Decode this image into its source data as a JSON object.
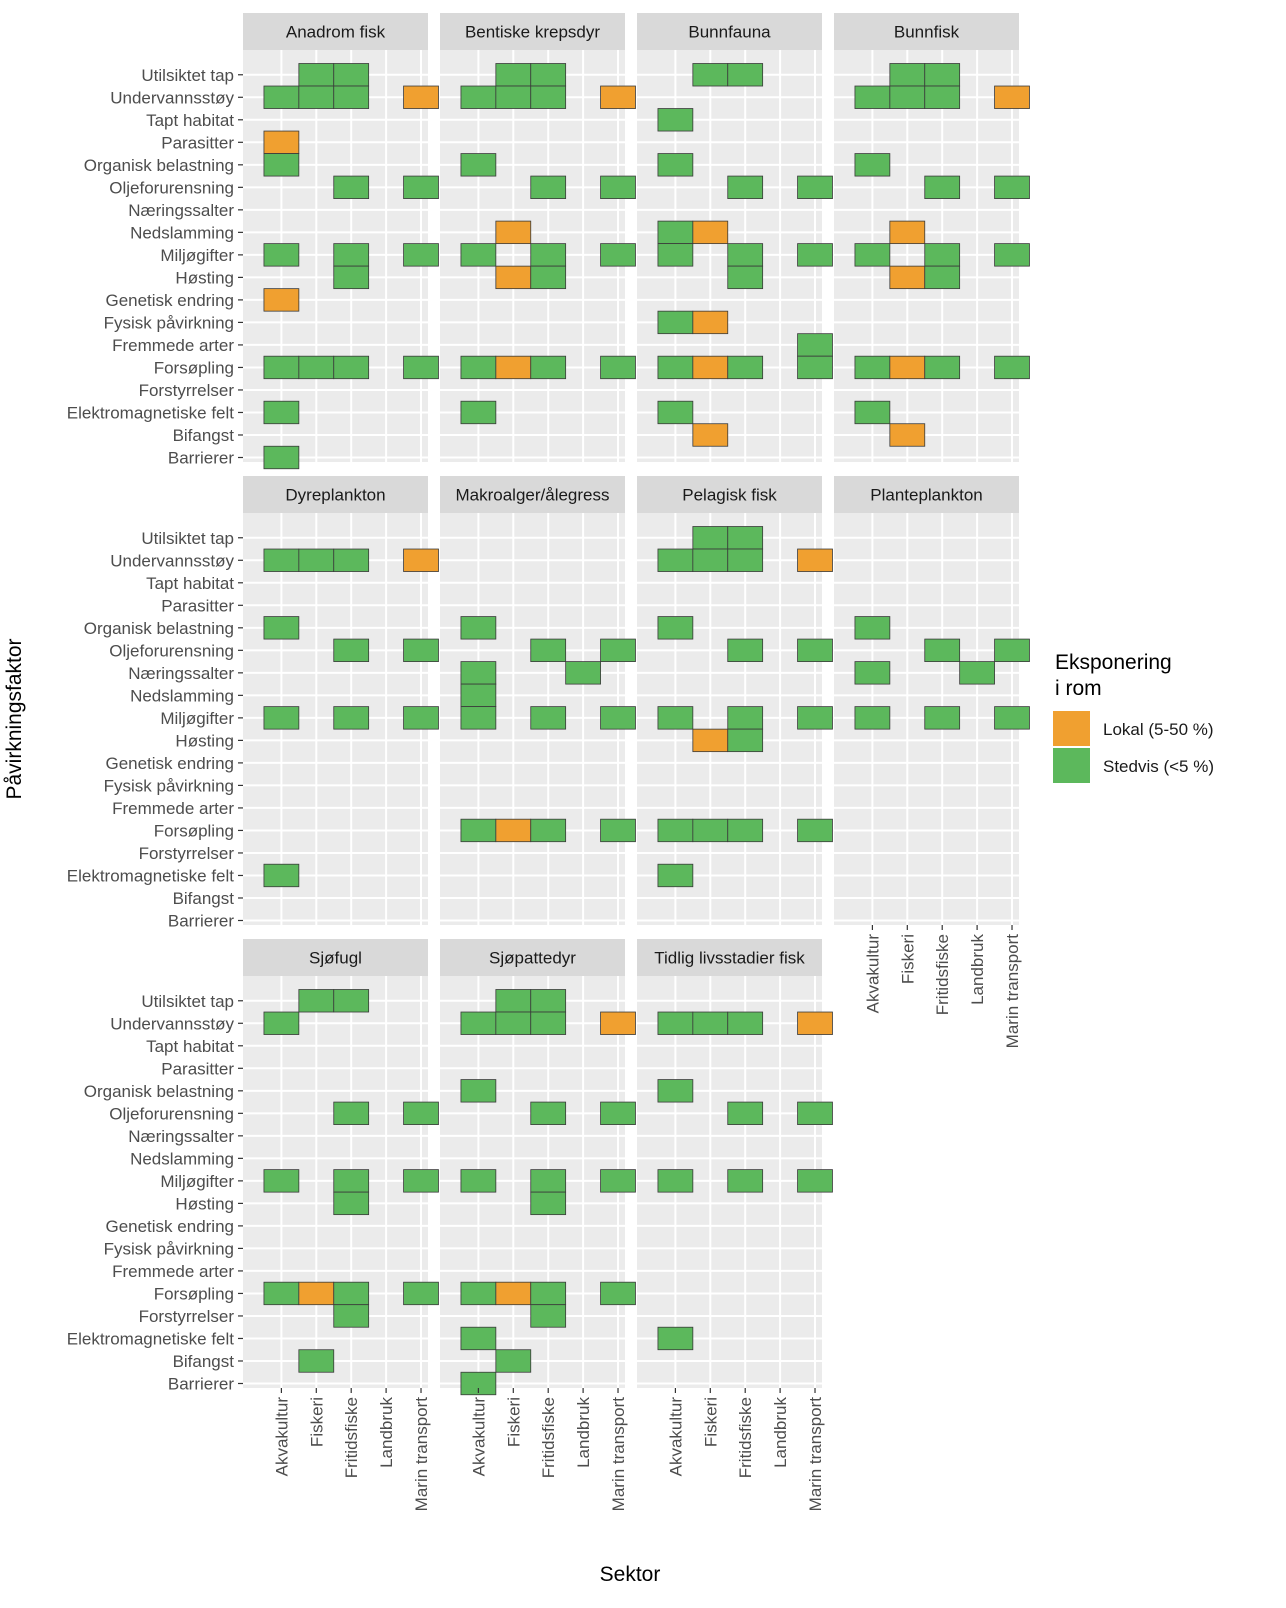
{
  "chart_data": {
    "type": "heatmap",
    "xlabel": "Sektor",
    "ylabel": "Påvirkningsfaktor",
    "x_categories": [
      "Akvakultur",
      "Fiskeri",
      "Fritidsfiske",
      "Landbruk",
      "Marin transport"
    ],
    "y_categories": [
      "Utilsiktet tap",
      "Undervannsstøy",
      "Tapt habitat",
      "Parasitter",
      "Organisk belastning",
      "Oljeforurensning",
      "Næringssalter",
      "Nedslamming",
      "Miljøgifter",
      "Høsting",
      "Genetisk endring",
      "Fysisk påvirkning",
      "Fremmede arter",
      "Forsøpling",
      "Forstyrrelser",
      "Elektromagnetiske felt",
      "Bifangst",
      "Barrierer"
    ],
    "legend": {
      "title_lines": [
        "Eksponering",
        "i rom"
      ],
      "position": "right",
      "entries": [
        {
          "key": "L",
          "label": "Lokal (5-50 %)",
          "color": "#F0A030"
        },
        {
          "key": "S",
          "label": "Stedvis (<5 %)",
          "color": "#5CB85C"
        }
      ]
    },
    "panels": [
      {
        "title": "Anadrom fisk",
        "cells": [
          [
            "Utilsiktet tap",
            "Fiskeri",
            "S"
          ],
          [
            "Utilsiktet tap",
            "Fritidsfiske",
            "S"
          ],
          [
            "Undervannsstøy",
            "Akvakultur",
            "S"
          ],
          [
            "Undervannsstøy",
            "Fiskeri",
            "S"
          ],
          [
            "Undervannsstøy",
            "Fritidsfiske",
            "S"
          ],
          [
            "Undervannsstøy",
            "Marin transport",
            "L"
          ],
          [
            "Parasitter",
            "Akvakultur",
            "L"
          ],
          [
            "Organisk belastning",
            "Akvakultur",
            "S"
          ],
          [
            "Oljeforurensning",
            "Fritidsfiske",
            "S"
          ],
          [
            "Oljeforurensning",
            "Marin transport",
            "S"
          ],
          [
            "Miljøgifter",
            "Akvakultur",
            "S"
          ],
          [
            "Miljøgifter",
            "Fritidsfiske",
            "S"
          ],
          [
            "Miljøgifter",
            "Marin transport",
            "S"
          ],
          [
            "Høsting",
            "Fritidsfiske",
            "S"
          ],
          [
            "Genetisk endring",
            "Akvakultur",
            "L"
          ],
          [
            "Forsøpling",
            "Akvakultur",
            "S"
          ],
          [
            "Forsøpling",
            "Fiskeri",
            "S"
          ],
          [
            "Forsøpling",
            "Fritidsfiske",
            "S"
          ],
          [
            "Forsøpling",
            "Marin transport",
            "S"
          ],
          [
            "Elektromagnetiske felt",
            "Akvakultur",
            "S"
          ],
          [
            "Barrierer",
            "Akvakultur",
            "S"
          ]
        ]
      },
      {
        "title": "Bentiske krepsdyr",
        "cells": [
          [
            "Utilsiktet tap",
            "Fiskeri",
            "S"
          ],
          [
            "Utilsiktet tap",
            "Fritidsfiske",
            "S"
          ],
          [
            "Undervannsstøy",
            "Akvakultur",
            "S"
          ],
          [
            "Undervannsstøy",
            "Fiskeri",
            "S"
          ],
          [
            "Undervannsstøy",
            "Fritidsfiske",
            "S"
          ],
          [
            "Undervannsstøy",
            "Marin transport",
            "L"
          ],
          [
            "Organisk belastning",
            "Akvakultur",
            "S"
          ],
          [
            "Oljeforurensning",
            "Fritidsfiske",
            "S"
          ],
          [
            "Oljeforurensning",
            "Marin transport",
            "S"
          ],
          [
            "Nedslamming",
            "Fiskeri",
            "L"
          ],
          [
            "Miljøgifter",
            "Akvakultur",
            "S"
          ],
          [
            "Miljøgifter",
            "Fritidsfiske",
            "S"
          ],
          [
            "Miljøgifter",
            "Marin transport",
            "S"
          ],
          [
            "Høsting",
            "Fiskeri",
            "L"
          ],
          [
            "Høsting",
            "Fritidsfiske",
            "S"
          ],
          [
            "Forsøpling",
            "Akvakultur",
            "S"
          ],
          [
            "Forsøpling",
            "Fiskeri",
            "L"
          ],
          [
            "Forsøpling",
            "Fritidsfiske",
            "S"
          ],
          [
            "Forsøpling",
            "Marin transport",
            "S"
          ],
          [
            "Elektromagnetiske felt",
            "Akvakultur",
            "S"
          ]
        ]
      },
      {
        "title": "Bunnfauna",
        "cells": [
          [
            "Utilsiktet tap",
            "Fiskeri",
            "S"
          ],
          [
            "Utilsiktet tap",
            "Fritidsfiske",
            "S"
          ],
          [
            "Tapt habitat",
            "Akvakultur",
            "S"
          ],
          [
            "Organisk belastning",
            "Akvakultur",
            "S"
          ],
          [
            "Oljeforurensning",
            "Fritidsfiske",
            "S"
          ],
          [
            "Oljeforurensning",
            "Marin transport",
            "S"
          ],
          [
            "Nedslamming",
            "Akvakultur",
            "S"
          ],
          [
            "Nedslamming",
            "Fiskeri",
            "L"
          ],
          [
            "Miljøgifter",
            "Akvakultur",
            "S"
          ],
          [
            "Miljøgifter",
            "Fritidsfiske",
            "S"
          ],
          [
            "Miljøgifter",
            "Marin transport",
            "S"
          ],
          [
            "Høsting",
            "Fritidsfiske",
            "S"
          ],
          [
            "Fysisk påvirkning",
            "Akvakultur",
            "S"
          ],
          [
            "Fysisk påvirkning",
            "Fiskeri",
            "L"
          ],
          [
            "Fremmede arter",
            "Marin transport",
            "S"
          ],
          [
            "Forsøpling",
            "Akvakultur",
            "S"
          ],
          [
            "Forsøpling",
            "Fiskeri",
            "L"
          ],
          [
            "Forsøpling",
            "Fritidsfiske",
            "S"
          ],
          [
            "Forsøpling",
            "Marin transport",
            "S"
          ],
          [
            "Elektromagnetiske felt",
            "Akvakultur",
            "S"
          ],
          [
            "Bifangst",
            "Fiskeri",
            "L"
          ]
        ]
      },
      {
        "title": "Bunnfisk",
        "cells": [
          [
            "Utilsiktet tap",
            "Fiskeri",
            "S"
          ],
          [
            "Utilsiktet tap",
            "Fritidsfiske",
            "S"
          ],
          [
            "Undervannsstøy",
            "Akvakultur",
            "S"
          ],
          [
            "Undervannsstøy",
            "Fiskeri",
            "S"
          ],
          [
            "Undervannsstøy",
            "Fritidsfiske",
            "S"
          ],
          [
            "Undervannsstøy",
            "Marin transport",
            "L"
          ],
          [
            "Organisk belastning",
            "Akvakultur",
            "S"
          ],
          [
            "Oljeforurensning",
            "Fritidsfiske",
            "S"
          ],
          [
            "Oljeforurensning",
            "Marin transport",
            "S"
          ],
          [
            "Nedslamming",
            "Fiskeri",
            "L"
          ],
          [
            "Miljøgifter",
            "Akvakultur",
            "S"
          ],
          [
            "Miljøgifter",
            "Fritidsfiske",
            "S"
          ],
          [
            "Miljøgifter",
            "Marin transport",
            "S"
          ],
          [
            "Høsting",
            "Fiskeri",
            "L"
          ],
          [
            "Høsting",
            "Fritidsfiske",
            "S"
          ],
          [
            "Forsøpling",
            "Akvakultur",
            "S"
          ],
          [
            "Forsøpling",
            "Fiskeri",
            "L"
          ],
          [
            "Forsøpling",
            "Fritidsfiske",
            "S"
          ],
          [
            "Forsøpling",
            "Marin transport",
            "S"
          ],
          [
            "Elektromagnetiske felt",
            "Akvakultur",
            "S"
          ],
          [
            "Bifangst",
            "Fiskeri",
            "L"
          ]
        ]
      },
      {
        "title": "Dyreplankton",
        "cells": [
          [
            "Undervannsstøy",
            "Akvakultur",
            "S"
          ],
          [
            "Undervannsstøy",
            "Fiskeri",
            "S"
          ],
          [
            "Undervannsstøy",
            "Fritidsfiske",
            "S"
          ],
          [
            "Undervannsstøy",
            "Marin transport",
            "L"
          ],
          [
            "Organisk belastning",
            "Akvakultur",
            "S"
          ],
          [
            "Oljeforurensning",
            "Fritidsfiske",
            "S"
          ],
          [
            "Oljeforurensning",
            "Marin transport",
            "S"
          ],
          [
            "Miljøgifter",
            "Akvakultur",
            "S"
          ],
          [
            "Miljøgifter",
            "Fritidsfiske",
            "S"
          ],
          [
            "Miljøgifter",
            "Marin transport",
            "S"
          ],
          [
            "Elektromagnetiske felt",
            "Akvakultur",
            "S"
          ]
        ]
      },
      {
        "title": "Makroalger/ålegress",
        "cells": [
          [
            "Organisk belastning",
            "Akvakultur",
            "S"
          ],
          [
            "Oljeforurensning",
            "Fritidsfiske",
            "S"
          ],
          [
            "Oljeforurensning",
            "Marin transport",
            "S"
          ],
          [
            "Næringssalter",
            "Akvakultur",
            "S"
          ],
          [
            "Næringssalter",
            "Landbruk",
            "S"
          ],
          [
            "Nedslamming",
            "Akvakultur",
            "S"
          ],
          [
            "Miljøgifter",
            "Akvakultur",
            "S"
          ],
          [
            "Miljøgifter",
            "Fritidsfiske",
            "S"
          ],
          [
            "Miljøgifter",
            "Marin transport",
            "S"
          ],
          [
            "Forsøpling",
            "Akvakultur",
            "S"
          ],
          [
            "Forsøpling",
            "Fiskeri",
            "L"
          ],
          [
            "Forsøpling",
            "Fritidsfiske",
            "S"
          ],
          [
            "Forsøpling",
            "Marin transport",
            "S"
          ]
        ]
      },
      {
        "title": "Pelagisk fisk",
        "cells": [
          [
            "Utilsiktet tap",
            "Fiskeri",
            "S"
          ],
          [
            "Utilsiktet tap",
            "Fritidsfiske",
            "S"
          ],
          [
            "Undervannsstøy",
            "Akvakultur",
            "S"
          ],
          [
            "Undervannsstøy",
            "Fiskeri",
            "S"
          ],
          [
            "Undervannsstøy",
            "Fritidsfiske",
            "S"
          ],
          [
            "Undervannsstøy",
            "Marin transport",
            "L"
          ],
          [
            "Organisk belastning",
            "Akvakultur",
            "S"
          ],
          [
            "Oljeforurensning",
            "Fritidsfiske",
            "S"
          ],
          [
            "Oljeforurensning",
            "Marin transport",
            "S"
          ],
          [
            "Miljøgifter",
            "Akvakultur",
            "S"
          ],
          [
            "Miljøgifter",
            "Fritidsfiske",
            "S"
          ],
          [
            "Miljøgifter",
            "Marin transport",
            "S"
          ],
          [
            "Høsting",
            "Fiskeri",
            "L"
          ],
          [
            "Høsting",
            "Fritidsfiske",
            "S"
          ],
          [
            "Forsøpling",
            "Akvakultur",
            "S"
          ],
          [
            "Forsøpling",
            "Fiskeri",
            "S"
          ],
          [
            "Forsøpling",
            "Fritidsfiske",
            "S"
          ],
          [
            "Forsøpling",
            "Marin transport",
            "S"
          ],
          [
            "Elektromagnetiske felt",
            "Akvakultur",
            "S"
          ]
        ]
      },
      {
        "title": "Planteplankton",
        "cells": [
          [
            "Organisk belastning",
            "Akvakultur",
            "S"
          ],
          [
            "Oljeforurensning",
            "Fritidsfiske",
            "S"
          ],
          [
            "Oljeforurensning",
            "Marin transport",
            "S"
          ],
          [
            "Næringssalter",
            "Akvakultur",
            "S"
          ],
          [
            "Næringssalter",
            "Landbruk",
            "S"
          ],
          [
            "Miljøgifter",
            "Akvakultur",
            "S"
          ],
          [
            "Miljøgifter",
            "Fritidsfiske",
            "S"
          ],
          [
            "Miljøgifter",
            "Marin transport",
            "S"
          ]
        ]
      },
      {
        "title": "Sjøfugl",
        "cells": [
          [
            "Utilsiktet tap",
            "Fiskeri",
            "S"
          ],
          [
            "Utilsiktet tap",
            "Fritidsfiske",
            "S"
          ],
          [
            "Undervannsstøy",
            "Akvakultur",
            "S"
          ],
          [
            "Oljeforurensning",
            "Fritidsfiske",
            "S"
          ],
          [
            "Oljeforurensning",
            "Marin transport",
            "S"
          ],
          [
            "Miljøgifter",
            "Akvakultur",
            "S"
          ],
          [
            "Miljøgifter",
            "Fritidsfiske",
            "S"
          ],
          [
            "Miljøgifter",
            "Marin transport",
            "S"
          ],
          [
            "Høsting",
            "Fritidsfiske",
            "S"
          ],
          [
            "Forsøpling",
            "Akvakultur",
            "S"
          ],
          [
            "Forsøpling",
            "Fiskeri",
            "L"
          ],
          [
            "Forsøpling",
            "Fritidsfiske",
            "S"
          ],
          [
            "Forsøpling",
            "Marin transport",
            "S"
          ],
          [
            "Forstyrrelser",
            "Fritidsfiske",
            "S"
          ],
          [
            "Bifangst",
            "Fiskeri",
            "S"
          ]
        ]
      },
      {
        "title": "Sjøpattedyr",
        "cells": [
          [
            "Utilsiktet tap",
            "Fiskeri",
            "S"
          ],
          [
            "Utilsiktet tap",
            "Fritidsfiske",
            "S"
          ],
          [
            "Undervannsstøy",
            "Akvakultur",
            "S"
          ],
          [
            "Undervannsstøy",
            "Fiskeri",
            "S"
          ],
          [
            "Undervannsstøy",
            "Fritidsfiske",
            "S"
          ],
          [
            "Undervannsstøy",
            "Marin transport",
            "L"
          ],
          [
            "Organisk belastning",
            "Akvakultur",
            "S"
          ],
          [
            "Oljeforurensning",
            "Fritidsfiske",
            "S"
          ],
          [
            "Oljeforurensning",
            "Marin transport",
            "S"
          ],
          [
            "Miljøgifter",
            "Akvakultur",
            "S"
          ],
          [
            "Miljøgifter",
            "Fritidsfiske",
            "S"
          ],
          [
            "Miljøgifter",
            "Marin transport",
            "S"
          ],
          [
            "Høsting",
            "Fritidsfiske",
            "S"
          ],
          [
            "Forsøpling",
            "Akvakultur",
            "S"
          ],
          [
            "Forsøpling",
            "Fiskeri",
            "L"
          ],
          [
            "Forsøpling",
            "Fritidsfiske",
            "S"
          ],
          [
            "Forsøpling",
            "Marin transport",
            "S"
          ],
          [
            "Forstyrrelser",
            "Fritidsfiske",
            "S"
          ],
          [
            "Elektromagnetiske felt",
            "Akvakultur",
            "S"
          ],
          [
            "Bifangst",
            "Fiskeri",
            "S"
          ],
          [
            "Barrierer",
            "Akvakultur",
            "S"
          ]
        ]
      },
      {
        "title": "Tidlig livsstadier fisk",
        "cells": [
          [
            "Undervannsstøy",
            "Akvakultur",
            "S"
          ],
          [
            "Undervannsstøy",
            "Fiskeri",
            "S"
          ],
          [
            "Undervannsstøy",
            "Fritidsfiske",
            "S"
          ],
          [
            "Undervannsstøy",
            "Marin transport",
            "L"
          ],
          [
            "Organisk belastning",
            "Akvakultur",
            "S"
          ],
          [
            "Oljeforurensning",
            "Fritidsfiske",
            "S"
          ],
          [
            "Oljeforurensning",
            "Marin transport",
            "S"
          ],
          [
            "Miljøgifter",
            "Akvakultur",
            "S"
          ],
          [
            "Miljøgifter",
            "Fritidsfiske",
            "S"
          ],
          [
            "Miljøgifter",
            "Marin transport",
            "S"
          ],
          [
            "Elektromagnetiske felt",
            "Akvakultur",
            "S"
          ]
        ]
      }
    ]
  }
}
